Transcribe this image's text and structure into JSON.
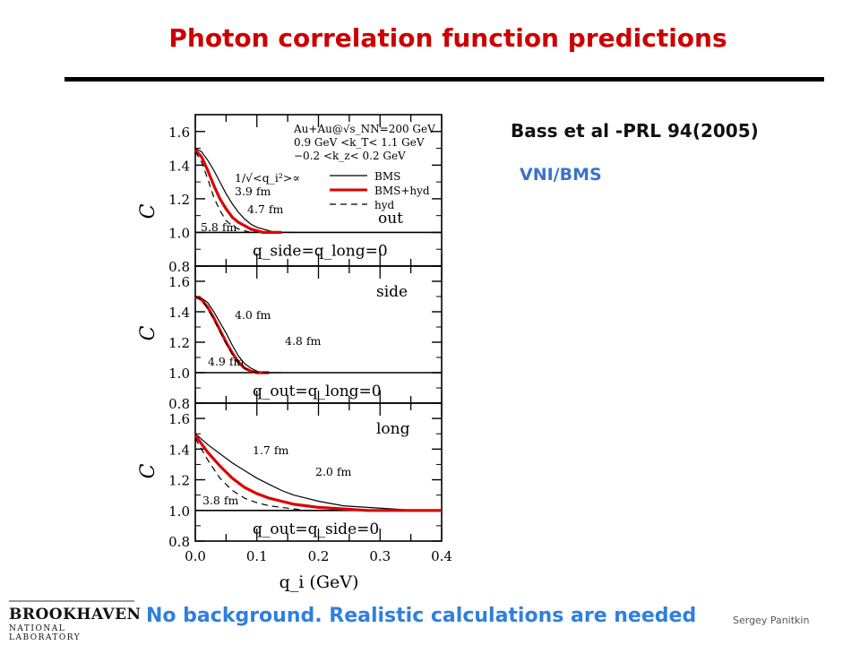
{
  "slide": {
    "title": "Photon correlation function predictions",
    "reference": "Bass et al -PRL 94(2005)",
    "model": "VNI/BMS",
    "footer": "No background. Realistic calculations are needed",
    "author": "Sergey Panitkin",
    "logo_line1": "BROOKHAVEN",
    "logo_line2": "NATIONAL LABORATORY"
  },
  "colors": {
    "title": "#cc0000",
    "accent": "#3a73c9",
    "red_curve": "#dd0000"
  },
  "chart_data": [
    {
      "type": "line",
      "panel": "out",
      "label": "out",
      "condition": "q_side=q_long=0",
      "ylabel": "C",
      "xlim": [
        0,
        0.4
      ],
      "ylim": [
        0.8,
        1.7
      ],
      "yticks": [
        "0.8",
        "1.0",
        "1.2",
        "1.4",
        "1.6"
      ],
      "header": [
        "Au+Au@√s_NN=200 GeV",
        "0.9 GeV <k_T< 1.1 GeV",
        "−0.2 <k_z< 0.2 GeV"
      ],
      "legend": {
        "BMS": "BMS",
        "BMS+hyd": "BMS+hyd",
        "hyd": "hyd"
      },
      "annotations": [
        "1/√<q_i²>∝",
        "3.9 fm",
        "4.7 fm",
        "5.8 fm"
      ],
      "series": [
        {
          "name": "BMS",
          "style": "thin",
          "x": [
            0,
            0.01,
            0.02,
            0.03,
            0.04,
            0.05,
            0.06,
            0.07,
            0.08,
            0.09,
            0.1,
            0.11,
            0.12,
            0.13,
            0.14,
            0.15,
            0.16
          ],
          "y": [
            1.5,
            1.48,
            1.43,
            1.37,
            1.3,
            1.23,
            1.17,
            1.12,
            1.08,
            1.05,
            1.03,
            1.02,
            1.01,
            1.0,
            1.0,
            1.0,
            1.0
          ]
        },
        {
          "name": "BMS+hyd",
          "style": "red",
          "x": [
            0,
            0.01,
            0.02,
            0.03,
            0.04,
            0.05,
            0.06,
            0.07,
            0.08,
            0.09,
            0.1,
            0.11,
            0.12,
            0.13,
            0.14
          ],
          "y": [
            1.49,
            1.45,
            1.37,
            1.28,
            1.2,
            1.14,
            1.09,
            1.06,
            1.04,
            1.02,
            1.01,
            1.0,
            1.0,
            1.0,
            1.0
          ]
        },
        {
          "name": "hyd",
          "style": "dashed",
          "x": [
            0,
            0.01,
            0.02,
            0.03,
            0.04,
            0.05,
            0.06,
            0.07,
            0.08,
            0.09,
            0.1
          ],
          "y": [
            1.48,
            1.42,
            1.32,
            1.21,
            1.13,
            1.07,
            1.04,
            1.02,
            1.01,
            1.0,
            1.0
          ]
        }
      ]
    },
    {
      "type": "line",
      "panel": "side",
      "label": "side",
      "condition": "q_out=q_long=0",
      "ylabel": "C",
      "xlim": [
        0,
        0.4
      ],
      "ylim": [
        0.8,
        1.7
      ],
      "yticks": [
        "0.8",
        "1.0",
        "1.2",
        "1.4",
        "1.6"
      ],
      "annotations": [
        "4.0 fm",
        "4.8 fm",
        "4.9 fm"
      ],
      "series": [
        {
          "name": "BMS",
          "style": "thin",
          "x": [
            0,
            0.01,
            0.02,
            0.03,
            0.04,
            0.05,
            0.06,
            0.07,
            0.08,
            0.09,
            0.1,
            0.11,
            0.12,
            0.13,
            0.14
          ],
          "y": [
            1.5,
            1.49,
            1.46,
            1.4,
            1.33,
            1.26,
            1.18,
            1.11,
            1.06,
            1.03,
            1.01,
            1.0,
            1.0,
            1.0,
            1.0
          ]
        },
        {
          "name": "BMS+hyd",
          "style": "red",
          "x": [
            0,
            0.01,
            0.02,
            0.03,
            0.04,
            0.05,
            0.06,
            0.07,
            0.08,
            0.09,
            0.1,
            0.11,
            0.12
          ],
          "y": [
            1.5,
            1.48,
            1.43,
            1.36,
            1.28,
            1.2,
            1.13,
            1.07,
            1.03,
            1.01,
            1.0,
            1.0,
            1.0
          ]
        },
        {
          "name": "hyd",
          "style": "dashed",
          "x": [
            0,
            0.01,
            0.02,
            0.03,
            0.04,
            0.05,
            0.06,
            0.07,
            0.08,
            0.09,
            0.1,
            0.11,
            0.12
          ],
          "y": [
            1.5,
            1.48,
            1.42,
            1.35,
            1.27,
            1.19,
            1.12,
            1.06,
            1.03,
            1.01,
            1.0,
            1.0,
            1.0
          ]
        }
      ]
    },
    {
      "type": "line",
      "panel": "long",
      "label": "long",
      "condition": "q_out=q_side=0",
      "ylabel": "C",
      "xlabel": "q_i (GeV)",
      "xlim": [
        0,
        0.4
      ],
      "ylim": [
        0.8,
        1.7
      ],
      "xticks": [
        "0.0",
        "0.1",
        "0.2",
        "0.3",
        "0.4"
      ],
      "yticks": [
        "0.8",
        "1.0",
        "1.2",
        "1.4",
        "1.6"
      ],
      "annotations": [
        "1.7 fm",
        "2.0 fm",
        "3.8 fm"
      ],
      "series": [
        {
          "name": "BMS",
          "style": "thin",
          "x": [
            0,
            0.02,
            0.04,
            0.06,
            0.08,
            0.1,
            0.12,
            0.14,
            0.16,
            0.18,
            0.2,
            0.24,
            0.28,
            0.32,
            0.36,
            0.4
          ],
          "y": [
            1.5,
            1.43,
            1.37,
            1.31,
            1.26,
            1.21,
            1.17,
            1.13,
            1.1,
            1.08,
            1.06,
            1.03,
            1.02,
            1.01,
            1.0,
            1.0
          ]
        },
        {
          "name": "BMS+hyd",
          "style": "red",
          "x": [
            0,
            0.02,
            0.04,
            0.06,
            0.08,
            0.1,
            0.12,
            0.14,
            0.16,
            0.18,
            0.2,
            0.24,
            0.28,
            0.32,
            0.36,
            0.4
          ],
          "y": [
            1.49,
            1.38,
            1.29,
            1.21,
            1.15,
            1.11,
            1.08,
            1.06,
            1.04,
            1.03,
            1.02,
            1.01,
            1.0,
            1.0,
            1.0,
            1.0
          ]
        },
        {
          "name": "hyd",
          "style": "dashed",
          "x": [
            0,
            0.02,
            0.04,
            0.06,
            0.08,
            0.1,
            0.12,
            0.14,
            0.16,
            0.18,
            0.2
          ],
          "y": [
            1.47,
            1.33,
            1.21,
            1.13,
            1.08,
            1.05,
            1.03,
            1.02,
            1.01,
            1.0,
            1.0
          ]
        }
      ]
    }
  ]
}
